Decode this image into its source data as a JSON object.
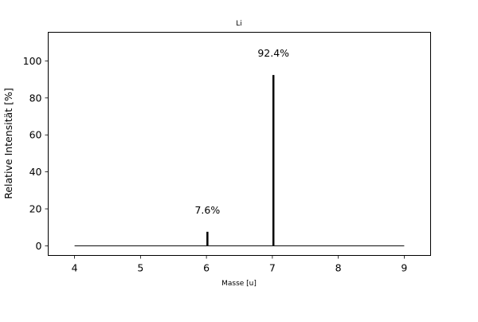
{
  "chart_data": {
    "type": "bar",
    "title": "Li",
    "xlabel": "Masse [u]",
    "ylabel": "Relative Intensität [%]",
    "xlim": [
      3.6,
      9.4
    ],
    "ylim": [
      -5.2,
      115.5
    ],
    "xticks": [
      4,
      5,
      6,
      7,
      8,
      9
    ],
    "yticks": [
      0,
      20,
      40,
      60,
      80,
      100
    ],
    "grid": false,
    "baseline": {
      "from": 4,
      "to": 9,
      "y": 0
    },
    "bars": [
      {
        "x": 6.015,
        "value": 7.6,
        "label": "7.6%"
      },
      {
        "x": 7.016,
        "value": 92.4,
        "label": "92.4%"
      }
    ],
    "bar_color": "#000000"
  }
}
